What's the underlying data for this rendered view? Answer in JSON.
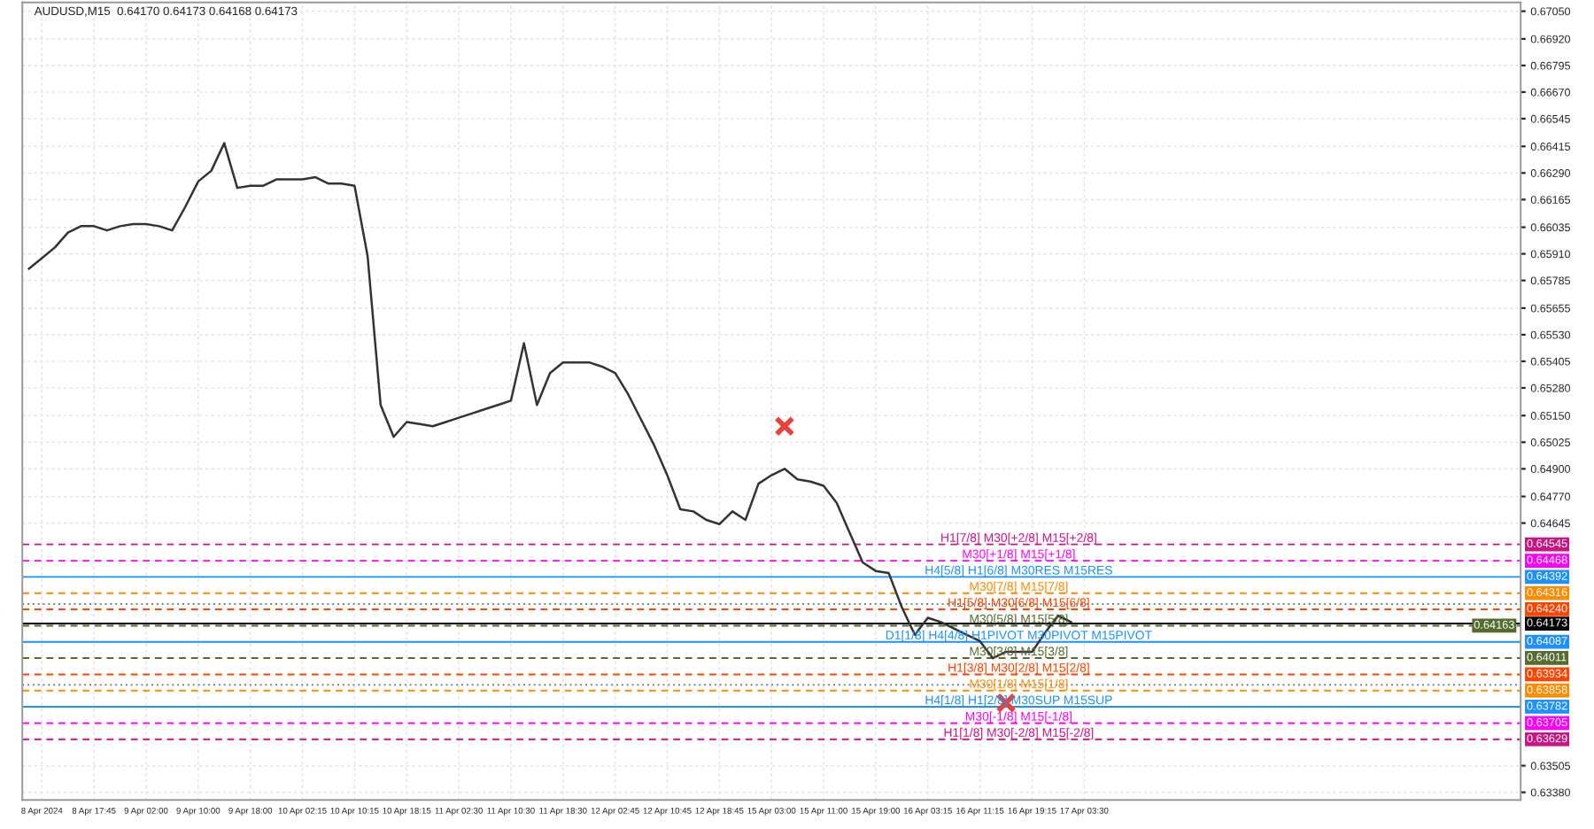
{
  "chart_data": {
    "type": "line",
    "title": "AUDUSD,M15  0.64170 0.64173 0.64168 0.64173",
    "categories": [
      null,
      "8 Apr 2024",
      null,
      null,
      null,
      "8 Apr 17:45",
      null,
      null,
      null,
      "9 Apr 02:00",
      null,
      null,
      null,
      "9 Apr 10:00",
      null,
      null,
      null,
      "9 Apr 18:00",
      null,
      null,
      null,
      "10 Apr 02:15",
      null,
      null,
      null,
      "10 Apr 10:15",
      null,
      null,
      null,
      "10 Apr 18:15",
      null,
      null,
      null,
      "11 Apr 02:30",
      null,
      null,
      null,
      "11 Apr 10:30",
      null,
      null,
      null,
      "11 Apr 18:30",
      null,
      null,
      null,
      "12 Apr 02:45",
      null,
      null,
      null,
      "12 Apr 10:45",
      null,
      null,
      null,
      "12 Apr 18:45",
      null,
      null,
      null,
      "15 Apr 03:00",
      null,
      null,
      null,
      "15 Apr 11:00",
      null,
      null,
      null,
      "15 Apr 19:00",
      null,
      null,
      null,
      "16 Apr 03:15",
      null,
      null,
      null,
      "16 Apr 11:15",
      null,
      null,
      null,
      "16 Apr 19:15",
      null,
      null,
      null,
      "17 Apr 03:30",
      null,
      null,
      null,
      null,
      null,
      null,
      null,
      null,
      null,
      null,
      null,
      null,
      null,
      null,
      null,
      null,
      null,
      null,
      null,
      null,
      null,
      null,
      null,
      null,
      null,
      null,
      null,
      null,
      null,
      null,
      null,
      null,
      null
    ],
    "series": [
      {
        "color": "#333333",
        "values": [
          0.6584,
          0.6589,
          0.6594,
          0.6601,
          0.6604,
          0.6604,
          0.6602,
          0.6604,
          0.6605,
          0.6605,
          0.6604,
          0.6602,
          0.6613,
          0.6625,
          0.663,
          0.6643,
          0.6622,
          0.6623,
          0.6623,
          0.6626,
          0.6626,
          0.6626,
          0.6627,
          0.6624,
          0.6624,
          0.6623,
          0.659,
          0.652,
          0.6505,
          0.6512,
          0.6511,
          0.651,
          0.6512,
          0.6514,
          0.6516,
          0.6518,
          0.652,
          0.6522,
          0.6549,
          0.652,
          0.6535,
          0.654,
          0.654,
          0.654,
          0.6538,
          0.6535,
          0.6525,
          0.6513,
          0.6501,
          0.6487,
          0.6471,
          0.647,
          0.6466,
          0.6464,
          0.647,
          0.6466,
          0.6483,
          0.6487,
          0.649,
          0.6485,
          0.6484,
          0.6482,
          0.6474,
          0.646,
          0.6446,
          0.6442,
          0.6441,
          0.6425,
          0.6412,
          0.642,
          0.6418,
          0.6415,
          0.6412,
          0.6409,
          0.6401,
          0.6404,
          0.6404,
          0.6404,
          0.6413,
          0.6421,
          0.6418,
          null,
          null,
          null,
          null,
          null,
          null,
          null,
          null,
          null,
          null,
          null,
          null,
          null,
          null,
          null,
          null,
          null,
          null,
          null,
          null,
          null,
          null,
          null,
          null,
          null,
          null,
          null,
          null,
          null,
          null,
          null,
          null,
          null,
          null
        ]
      },
      {
        "type": "scatter",
        "color": "#e8403a",
        "marker": "cross",
        "values": [
          null,
          null,
          null,
          null,
          null,
          null,
          null,
          null,
          null,
          null,
          null,
          null,
          null,
          null,
          null,
          null,
          null,
          null,
          null,
          null,
          null,
          null,
          null,
          null,
          null,
          null,
          null,
          null,
          null,
          null,
          null,
          null,
          null,
          null,
          null,
          null,
          null,
          null,
          null,
          null,
          null,
          null,
          null,
          null,
          null,
          null,
          null,
          null,
          null,
          null,
          null,
          null,
          null,
          null,
          null,
          null,
          null,
          null,
          0.651,
          null,
          null,
          null,
          null,
          null,
          null,
          null,
          null,
          null,
          null,
          null,
          null,
          null,
          null,
          null,
          null,
          0.638,
          null,
          null,
          null,
          null,
          null,
          null,
          null,
          null,
          null,
          null,
          null,
          null,
          null,
          null,
          null,
          null,
          null,
          null,
          null,
          null,
          null,
          null,
          null,
          null,
          null,
          null,
          null,
          null,
          null,
          null,
          null,
          null,
          null,
          null,
          null,
          null,
          null,
          null,
          null
        ]
      }
    ],
    "ylim": [
      0.63344,
      0.67091
    ],
    "yticks": [
      {
        "value": 0.6705,
        "label": "0.67050"
      },
      {
        "value": 0.6692,
        "label": "0.66920"
      },
      0.66795,
      {
        "value": 0.6667,
        "label": "0.66670"
      },
      0.66545,
      0.66415,
      {
        "value": 0.6629,
        "label": "0.66290"
      },
      0.66165,
      0.66035,
      {
        "value": 0.6591,
        "label": "0.65910"
      },
      0.65785,
      0.65655,
      {
        "value": 0.6553,
        "label": "0.65530"
      },
      0.65405,
      {
        "value": 0.6528,
        "label": "0.65280"
      },
      {
        "value": 0.6515,
        "label": "0.65150"
      },
      0.65025,
      {
        "value": 0.649,
        "label": "0.64900"
      },
      {
        "value": 0.6477,
        "label": "0.64770"
      },
      0.64645,
      0.63505,
      {
        "value": 0.6338,
        "label": "0.63380"
      }
    ],
    "ref_lines": [
      {
        "axis": "y",
        "value": 0.64545,
        "label": "H1[7/8] M30[+2/8] M15[+2/8]",
        "color": "#c71585",
        "line_style": "dashed"
      },
      {
        "axis": "y",
        "value": 0.64468,
        "label": "M30[+1/8] M15[+1/8]",
        "color": "#ff00ff",
        "line_style": "dashed"
      },
      {
        "axis": "y",
        "value": 0.64392,
        "label": "H4[5/8] H1[6/8] M30RES M15RES",
        "color": "#1e90ff",
        "line_style": "solid"
      },
      {
        "axis": "y",
        "value": 0.64316,
        "label": "M30[7/8] M15[7/8]",
        "color": "#ff8c00",
        "line_style": "dashed"
      },
      {
        "axis": "y",
        "value": 0.64265,
        "label": null,
        "color": "#808080",
        "line_style": "dotted"
      },
      {
        "axis": "y",
        "value": 0.6424,
        "label": "H1[5/8] M30[6/8] M15[6/8]",
        "color": "#ff4500",
        "line_style": "dashed"
      },
      {
        "axis": "y",
        "value": 0.64173,
        "label": null,
        "color": "#000000",
        "line_style": "solid"
      },
      {
        "axis": "y",
        "value": 0.64163,
        "label": "M30[5/8] M15[5/8]",
        "color": "#556b2f",
        "line_style": "dashed"
      },
      {
        "axis": "y",
        "value": 0.64087,
        "label": "D1[1/8] H4[4/8] H1PIVOT M30PIVOT M15PIVOT",
        "color": "#1e90ff",
        "line_style": "solid"
      },
      {
        "axis": "y",
        "value": 0.64011,
        "label": "M30[3/8] M15[3/8]",
        "color": "#556b2f",
        "line_style": "dashed"
      },
      {
        "axis": "y",
        "value": 0.63934,
        "label": "H1[3/8] M30[2/8] M15[2/8]",
        "color": "#ff4500",
        "line_style": "dashed"
      },
      {
        "axis": "y",
        "value": 0.63885,
        "label": null,
        "color": "#808080",
        "line_style": "dotted"
      },
      {
        "axis": "y",
        "value": 0.63858,
        "label": "M30[1/8] M15[1/8]",
        "color": "#ff8c00",
        "line_style": "dashed"
      },
      {
        "axis": "y",
        "value": 0.63782,
        "label": "H4[1/8] H1[2/8] M30SUP M15SUP",
        "color": "#1e90ff",
        "line_style": "solid"
      },
      {
        "axis": "y",
        "value": 0.63705,
        "label": "M30[-1/8] M15[-1/8]",
        "color": "#ff00ff",
        "line_style": "dashed"
      },
      {
        "axis": "y",
        "value": 0.63629,
        "label": "H1[1/8] M30[-2/8] M15[-2/8]",
        "color": "#c71585",
        "line_style": "dashed"
      }
    ],
    "annotations": [
      {
        "text": "0.64545",
        "y": 0.64545
      },
      {
        "text": "0.64468",
        "y": 0.64468
      },
      {
        "text": "0.64392",
        "y": 0.64392
      },
      {
        "text": "0.64316",
        "y": 0.64316
      },
      {
        "text": "0.64240",
        "y": 0.6424
      },
      {
        "text": "0.64173",
        "y": 0.64173
      },
      {
        "text": "0.64163",
        "y": 0.64163
      },
      {
        "text": "0.64087",
        "y": 0.64087
      },
      {
        "text": "0.64011",
        "y": 0.64011
      },
      {
        "text": "0.63934",
        "y": 0.63934
      },
      {
        "text": "0.63858",
        "y": 0.63858
      },
      {
        "text": "0.63782",
        "y": 0.63782
      },
      {
        "text": "0.63705",
        "y": 0.63705
      },
      {
        "text": "0.63629",
        "y": 0.63629
      }
    ],
    "grid": true,
    "legend": false
  }
}
